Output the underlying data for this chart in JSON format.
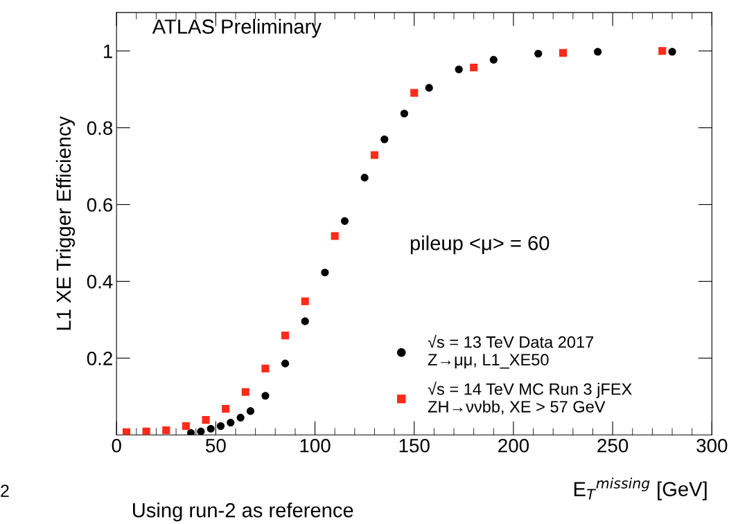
{
  "chart_data": {
    "type": "scatter",
    "xlabel": "E$_{T}$$^{missing}$ [GeV]",
    "ylabel": "L1 XE Trigger Efficiency",
    "xlim": [
      0,
      300
    ],
    "xticks": [
      0,
      50,
      100,
      150,
      200,
      250,
      300
    ],
    "ylim": [
      0,
      1.1
    ],
    "yticks": [
      0.2,
      0.4,
      0.6,
      0.8,
      1
    ],
    "grid": false,
    "legend": "bottom right",
    "annotations": [
      "ATLAS Preliminary",
      "pileup <μ> = 60",
      "Using run-2 as reference",
      "2"
    ],
    "series": [
      {
        "name": "√s = 13 TeV Data 2017\nZ→μμ, L1_XE50",
        "color": "#000000",
        "marker": "circle",
        "x": [
          37.5,
          42.5,
          47.5,
          52.5,
          57.5,
          62.5,
          67.5,
          75,
          85,
          95,
          105,
          115,
          125,
          135,
          145,
          157.5,
          172.5,
          190,
          212.5,
          242.5,
          280
        ],
        "values": [
          0.005,
          0.009,
          0.016,
          0.023,
          0.032,
          0.045,
          0.062,
          0.102,
          0.186,
          0.296,
          0.423,
          0.557,
          0.67,
          0.77,
          0.837,
          0.904,
          0.952,
          0.977,
          0.993,
          0.998,
          0.998
        ]
      },
      {
        "name": "√s = 14 TeV MC Run 3 jFEX\nZH→ννbb, XE > 57 GeV",
        "color": "#ff2a1a",
        "marker": "square",
        "x": [
          5,
          15,
          25,
          35,
          45,
          55,
          65,
          75,
          85,
          95,
          110,
          130,
          150,
          180,
          225,
          275
        ],
        "values": [
          0.007,
          0.009,
          0.012,
          0.023,
          0.039,
          0.068,
          0.112,
          0.173,
          0.259,
          0.348,
          0.518,
          0.729,
          0.891,
          0.957,
          0.995,
          1.0
        ]
      }
    ]
  }
}
